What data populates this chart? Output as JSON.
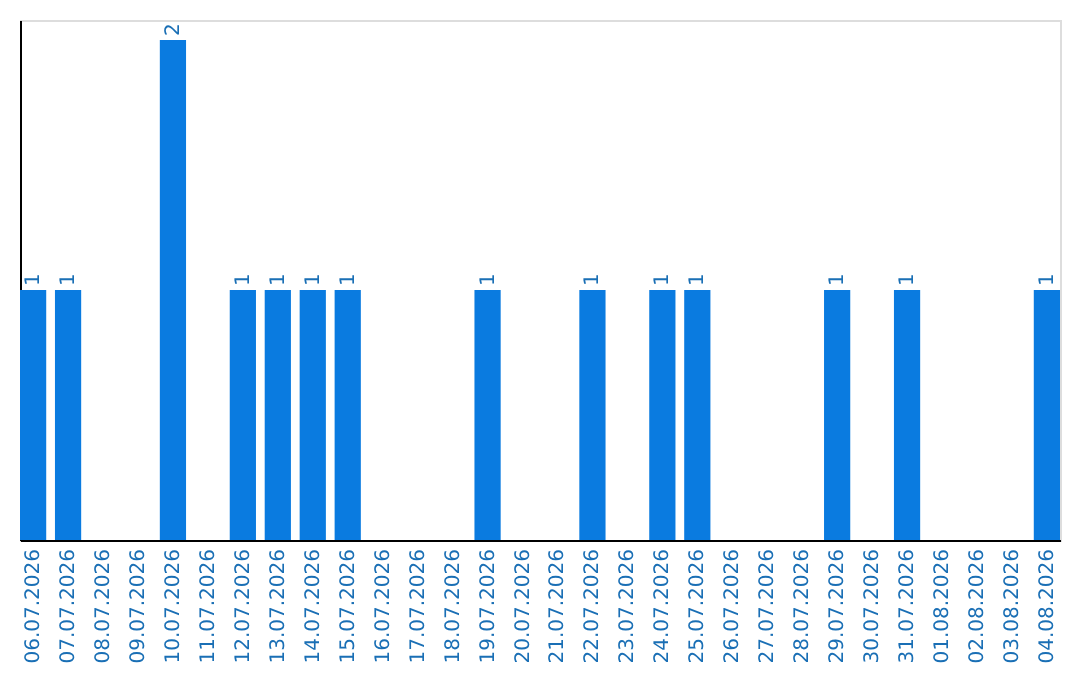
{
  "chart_data": {
    "type": "bar",
    "categories": [
      "06.07.2026",
      "07.07.2026",
      "08.07.2026",
      "09.07.2026",
      "10.07.2026",
      "11.07.2026",
      "12.07.2026",
      "13.07.2026",
      "14.07.2026",
      "15.07.2026",
      "16.07.2026",
      "17.07.2026",
      "18.07.2026",
      "19.07.2026",
      "20.07.2026",
      "21.07.2026",
      "22.07.2026",
      "23.07.2026",
      "24.07.2026",
      "25.07.2026",
      "26.07.2026",
      "27.07.2026",
      "28.07.2026",
      "29.07.2026",
      "30.07.2026",
      "31.07.2026",
      "01.08.2026",
      "02.08.2026",
      "03.08.2026",
      "04.08.2026"
    ],
    "values": [
      1,
      1,
      0,
      0,
      2,
      0,
      1,
      1,
      1,
      1,
      0,
      0,
      0,
      1,
      0,
      0,
      1,
      0,
      1,
      1,
      0,
      0,
      0,
      1,
      0,
      1,
      0,
      0,
      0,
      1
    ],
    "color": "#0a7be0",
    "ylim": [
      0,
      2.08
    ],
    "value_labels": [
      "1",
      "1",
      null,
      null,
      "2",
      null,
      "1",
      "1",
      "1",
      "1",
      null,
      null,
      null,
      "1",
      null,
      null,
      "1",
      null,
      "1",
      "1",
      null,
      null,
      null,
      "1",
      null,
      "1",
      null,
      null,
      null,
      "1"
    ],
    "tick_labels": "x",
    "grid": false
  }
}
